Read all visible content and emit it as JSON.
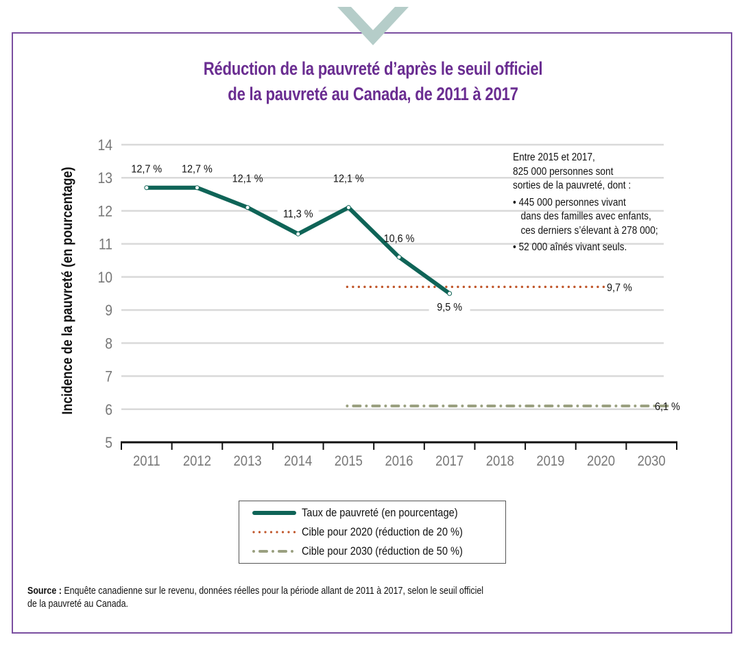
{
  "title": {
    "line1": "Réduction de la pauvreté d’après le seuil officiel",
    "line2": "de la pauvreté au Canada, de 2011 à 2017"
  },
  "colors": {
    "frame": "#7a4ea0",
    "title": "#6a2d91",
    "chevron": "#b5cdc9",
    "line": "#0f6457",
    "target2020": "#c0562a",
    "target2030": "#9aa080",
    "grid": "#d9d9d9",
    "tick_text": "#777777"
  },
  "annotation": {
    "intro": [
      "Entre 2015 et 2017,",
      "825 000 personnes sont",
      "sorties de la pauvreté, dont :"
    ],
    "bullet1": [
      "• 445 000 personnes vivant",
      "dans des familles avec enfants,",
      "ces derniers s’élevant à 278 000;"
    ],
    "bullet2": "• 52 000 aînés vivant seuls."
  },
  "legend": [
    {
      "label": "Taux de pauvreté (en pourcentage)",
      "style": "solid"
    },
    {
      "label": "Cible pour 2020 (réduction de 20 %)",
      "style": "dotted"
    },
    {
      "label": "Cible pour 2030 (réduction de 50 %)",
      "style": "dash-dot"
    }
  ],
  "source": {
    "bold": "Source :",
    "line1": " Enquête canadienne sur le revenu, données réelles pour la période allant de 2011 à 2017, selon le seuil officiel",
    "line2": "de la pauvreté au Canada."
  },
  "chart_data": {
    "type": "line",
    "title": "Réduction de la pauvreté d’après le seuil officiel de la pauvreté au Canada, de 2011 à 2017",
    "xlabel": "",
    "ylabel": "Incidence de la pauvreté (en pourcentage)",
    "categories": [
      "2011",
      "2012",
      "2013",
      "2014",
      "2015",
      "2016",
      "2017",
      "2018",
      "2019",
      "2020",
      "2030"
    ],
    "ylim": [
      5,
      14
    ],
    "yticks": [
      5,
      6,
      7,
      8,
      9,
      10,
      11,
      12,
      13,
      14
    ],
    "grid": true,
    "legend_position": "bottom-center",
    "series": [
      {
        "name": "Taux de pauvreté (en pourcentage)",
        "style": "solid",
        "x": [
          "2011",
          "2012",
          "2013",
          "2014",
          "2015",
          "2016",
          "2017"
        ],
        "values": [
          12.7,
          12.7,
          12.1,
          11.3,
          12.1,
          10.6,
          9.5
        ],
        "labels": [
          "12,7 %",
          "12,7 %",
          "12,1 %",
          "11,3 %",
          "12,1 %",
          "10,6 %",
          "9,5 %"
        ]
      },
      {
        "name": "Cible pour 2020 (réduction de 20 %)",
        "style": "dotted",
        "x_range": [
          "2015",
          "2020"
        ],
        "value": 9.7,
        "label": "9,7 %"
      },
      {
        "name": "Cible pour 2030 (réduction de 50 %)",
        "style": "dash-dot",
        "x_range": [
          "2015",
          "2030"
        ],
        "value": 6.1,
        "label": "6,1 %"
      }
    ]
  }
}
